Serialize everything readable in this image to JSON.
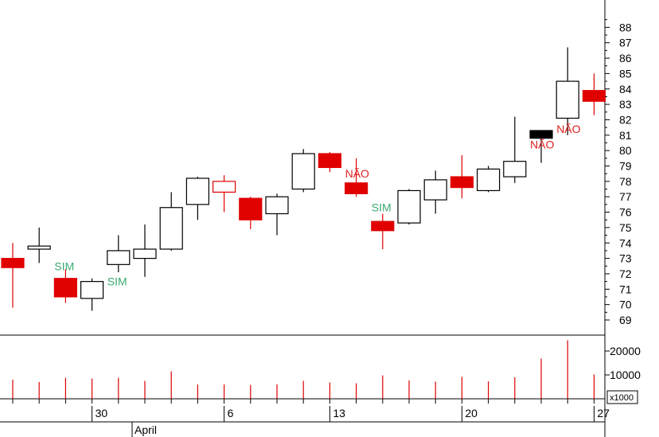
{
  "chart_data": {
    "type": "candlestick",
    "price_axis": {
      "ylim": [
        68,
        88.5
      ],
      "ticks": [
        69,
        70,
        71,
        72,
        73,
        74,
        75,
        76,
        77,
        78,
        79,
        80,
        81,
        82,
        83,
        84,
        85,
        86,
        87,
        88
      ]
    },
    "volume_axis": {
      "ylim": [
        0,
        26000
      ],
      "ticks": [
        10000,
        20000
      ],
      "tick_labels": [
        "10000",
        "20000"
      ],
      "multiplier_label": "x1000"
    },
    "x_ticks": [
      {
        "label": "30",
        "index": 3
      },
      {
        "label": "6",
        "index": 8
      },
      {
        "label": "13",
        "index": 12
      },
      {
        "label": "20",
        "index": 17
      },
      {
        "label": "27",
        "index": 22
      }
    ],
    "month_labels": [
      {
        "label": "April",
        "index": 5
      }
    ],
    "colors": {
      "up": "#ffffff",
      "down": "#e00000",
      "neutral": "#000000",
      "annotation_sim": "#3aaa70",
      "annotation_nao": "#e02020"
    },
    "candles": [
      {
        "open": 73.0,
        "high": 74.0,
        "low": 69.8,
        "close": 72.4,
        "color": "red"
      },
      {
        "open": 73.6,
        "high": 75.0,
        "low": 72.7,
        "close": 73.8,
        "color": "white"
      },
      {
        "open": 71.7,
        "high": 72.3,
        "low": 70.1,
        "close": 70.5,
        "color": "red"
      },
      {
        "open": 70.4,
        "high": 71.7,
        "low": 69.6,
        "close": 71.5,
        "color": "white"
      },
      {
        "open": 72.6,
        "high": 74.5,
        "low": 72.1,
        "close": 73.5,
        "color": "white"
      },
      {
        "open": 73.0,
        "high": 75.2,
        "low": 71.8,
        "close": 73.6,
        "color": "white"
      },
      {
        "open": 73.6,
        "high": 77.3,
        "low": 73.5,
        "close": 76.3,
        "color": "white"
      },
      {
        "open": 76.5,
        "high": 78.3,
        "low": 75.5,
        "close": 78.2,
        "color": "white"
      },
      {
        "open": 77.3,
        "high": 78.4,
        "low": 76.0,
        "close": 78.0,
        "color": "red_outline"
      },
      {
        "open": 76.9,
        "high": 77.0,
        "low": 74.9,
        "close": 75.5,
        "color": "red"
      },
      {
        "open": 75.9,
        "high": 77.2,
        "low": 74.5,
        "close": 77.0,
        "color": "white"
      },
      {
        "open": 77.5,
        "high": 80.1,
        "low": 77.3,
        "close": 79.8,
        "color": "white"
      },
      {
        "open": 79.8,
        "high": 79.9,
        "low": 78.6,
        "close": 78.9,
        "color": "red"
      },
      {
        "open": 77.9,
        "high": 79.5,
        "low": 77.0,
        "close": 77.2,
        "color": "red"
      },
      {
        "open": 75.4,
        "high": 75.9,
        "low": 73.6,
        "close": 74.8,
        "color": "red"
      },
      {
        "open": 75.3,
        "high": 77.5,
        "low": 75.2,
        "close": 77.4,
        "color": "white"
      },
      {
        "open": 76.8,
        "high": 78.7,
        "low": 75.9,
        "close": 78.1,
        "color": "white"
      },
      {
        "open": 78.3,
        "high": 79.7,
        "low": 76.9,
        "close": 77.6,
        "color": "red"
      },
      {
        "open": 77.4,
        "high": 79.0,
        "low": 77.3,
        "close": 78.8,
        "color": "white"
      },
      {
        "open": 78.3,
        "high": 82.2,
        "low": 77.9,
        "close": 79.3,
        "color": "white"
      },
      {
        "open": 81.3,
        "high": 81.3,
        "low": 79.2,
        "close": 80.8,
        "color": "black"
      },
      {
        "open": 82.1,
        "high": 86.7,
        "low": 81.0,
        "close": 84.5,
        "color": "white"
      },
      {
        "open": 83.9,
        "high": 85.0,
        "low": 82.3,
        "close": 83.2,
        "color": "red"
      }
    ],
    "volumes": [
      8000,
      7000,
      8800,
      8500,
      8800,
      7500,
      11500,
      6000,
      6000,
      5800,
      6000,
      7500,
      6800,
      6500,
      9800,
      7700,
      7200,
      9200,
      7300,
      9000,
      16800,
      24500,
      10200
    ],
    "annotations": [
      {
        "text": "SIM",
        "index": 2,
        "price": 72.5,
        "kind": "sim"
      },
      {
        "text": "SIM",
        "index": 4,
        "price": 71.5,
        "kind": "sim"
      },
      {
        "text": "NÃO",
        "index": 13,
        "price": 78.5,
        "kind": "nao"
      },
      {
        "text": "SIM",
        "index": 14,
        "price": 76.3,
        "kind": "sim"
      },
      {
        "text": "NÃO",
        "index": 20,
        "price": 80.4,
        "kind": "nao"
      },
      {
        "text": "NÃO",
        "index": 21,
        "price": 81.4,
        "kind": "nao"
      }
    ]
  }
}
